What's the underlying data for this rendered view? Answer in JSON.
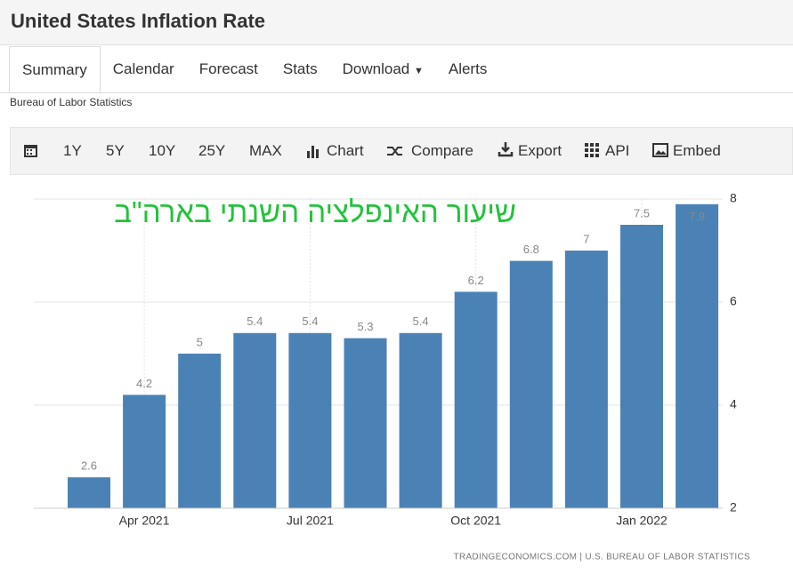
{
  "header": {
    "title": "United States Inflation Rate"
  },
  "nav": {
    "tabs": [
      "Summary",
      "Calendar",
      "Forecast",
      "Stats",
      "Download",
      "Alerts"
    ]
  },
  "source": "Bureau of Labor Statistics",
  "toolbar": {
    "items": [
      "1Y",
      "5Y",
      "10Y",
      "25Y",
      "MAX",
      "Chart",
      "Compare",
      "Export",
      "API",
      "Embed"
    ]
  },
  "chart_data": {
    "type": "bar",
    "annotation": "שיעור האינפלציה השנתי בארה\"ב",
    "credit": "TRADINGECONOMICS.COM  |  U.S. BUREAU OF LABOR STATISTICS",
    "categories": [
      null,
      "Apr 2021",
      null,
      null,
      "Jul 2021",
      null,
      null,
      "Oct 2021",
      null,
      null,
      "Jan 2022",
      null
    ],
    "values": [
      2.6,
      4.2,
      5,
      5.4,
      5.4,
      5.3,
      5.4,
      6.2,
      6.8,
      7,
      7.5,
      7.9
    ],
    "color": "#4a82b6",
    "ylim": [
      2,
      8
    ],
    "yticks": [
      2,
      4,
      6,
      8
    ],
    "grid": true
  }
}
